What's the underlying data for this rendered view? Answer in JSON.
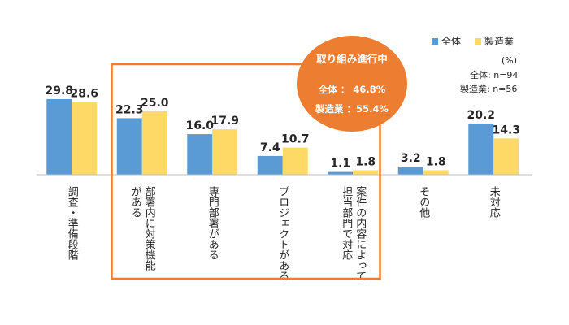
{
  "chart_data": {
    "type": "bar",
    "categories": [
      [
        "調査・準備段階"
      ],
      [
        "部署内に対策機能",
        "がある"
      ],
      [
        "専門部署がある"
      ],
      [
        "プロジェクトがある"
      ],
      [
        "案件の内容によって",
        "担当部門で対応"
      ],
      [
        "その他"
      ],
      [
        "未対応"
      ]
    ],
    "series": [
      {
        "name": "全体",
        "color": "#5B9BD5",
        "values": [
          29.8,
          22.3,
          16.0,
          7.4,
          1.1,
          3.2,
          20.2
        ],
        "labels": [
          "29.8",
          "22.3",
          "16.0",
          "7.4",
          "1.1",
          "3.2",
          "20.2"
        ]
      },
      {
        "name": "製造業",
        "color": "#FFD966",
        "values": [
          28.6,
          25.0,
          17.9,
          10.7,
          1.8,
          1.8,
          14.3
        ],
        "labels": [
          "28.6",
          "25.0",
          "17.9",
          "10.7",
          "1.8",
          "1.8",
          "14.3"
        ]
      }
    ],
    "ylim": [
      0,
      30
    ],
    "unit_label": "(%)",
    "sample_notes": [
      "全体: n=94",
      "製造業: n=56"
    ],
    "highlight": {
      "range": [
        1,
        4
      ],
      "color": "#ED7D31",
      "title": "取り組み進行中",
      "lines": [
        "全体 ： 46.8%",
        "製造業 ：55.4%"
      ]
    }
  }
}
